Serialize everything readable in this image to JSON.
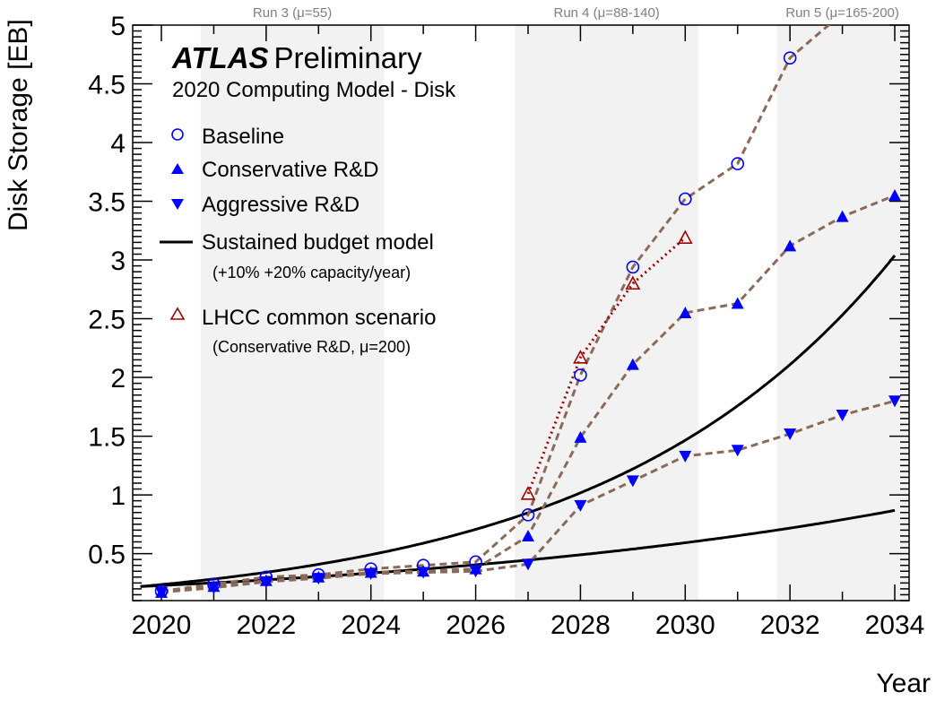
{
  "chart_data": {
    "type": "line",
    "title": "ATLAS Preliminary",
    "title_bold": "ATLAS",
    "title_rest": "Preliminary",
    "subtitle": "2020 Computing Model - Disk",
    "xlabel": "Year",
    "ylabel": "Disk Storage [EB]",
    "xlim": [
      2019.5,
      2034.5
    ],
    "ylim": [
      0.1,
      5
    ],
    "xticks": [
      "2020",
      "2022",
      "2024",
      "2026",
      "2028",
      "2030",
      "2032",
      "2034"
    ],
    "yticks": [
      "0.5",
      "1",
      "1.5",
      "2",
      "2.5",
      "3",
      "3.5",
      "4",
      "4.5",
      "5"
    ],
    "grid": false,
    "legend_position": "top-left",
    "shaded_bands": [
      {
        "label": "Run 3 (μ=55)",
        "x_start": 2020.75,
        "x_end": 2024.25
      },
      {
        "label": "Run 4 (μ=88-140)",
        "x_start": 2026.75,
        "x_end": 2030.25
      },
      {
        "label": "Run 5 (μ=165-200)",
        "x_start": 2031.75,
        "x_end": 2034.25
      }
    ],
    "series": [
      {
        "name": "Baseline",
        "marker": "open-circle",
        "color": "#0000ff",
        "line_color": "#8b6a5a",
        "x": [
          2020,
          2021,
          2022,
          2023,
          2024,
          2025,
          2026,
          2027,
          2028,
          2029,
          2030,
          2031,
          2032,
          2033
        ],
        "y": [
          0.18,
          0.24,
          0.3,
          0.32,
          0.37,
          0.4,
          0.43,
          0.83,
          2.02,
          2.94,
          3.52,
          3.82,
          4.72,
          5.1
        ]
      },
      {
        "name": "Conservative R&D",
        "marker": "triangle-up",
        "color": "#0000ff",
        "line_color": "#8b6a5a",
        "x": [
          2020,
          2021,
          2022,
          2023,
          2024,
          2025,
          2026,
          2027,
          2028,
          2029,
          2030,
          2031,
          2032,
          2033,
          2034
        ],
        "y": [
          0.17,
          0.22,
          0.27,
          0.3,
          0.34,
          0.35,
          0.37,
          0.65,
          1.49,
          2.11,
          2.55,
          2.63,
          3.12,
          3.37,
          3.55
        ]
      },
      {
        "name": "Aggressive R&D",
        "marker": "triangle-down",
        "color": "#0000ff",
        "line_color": "#8b6a5a",
        "x": [
          2020,
          2021,
          2022,
          2023,
          2024,
          2025,
          2026,
          2027,
          2028,
          2029,
          2030,
          2031,
          2032,
          2033,
          2034
        ],
        "y": [
          0.17,
          0.21,
          0.26,
          0.29,
          0.33,
          0.34,
          0.35,
          0.41,
          0.91,
          1.12,
          1.33,
          1.38,
          1.52,
          1.68,
          1.8
        ]
      },
      {
        "name": "LHCC common scenario",
        "sublabel": "(Conservative R&D, μ=200)",
        "marker": "open-triangle-up",
        "color": "#a00000",
        "line_color": "#a00000",
        "line_style": "dotted",
        "x": [
          2027,
          2028,
          2029,
          2030
        ],
        "y": [
          1.01,
          2.17,
          2.8,
          3.19
        ]
      },
      {
        "name": "Sustained budget model",
        "sublabel": "(+10% +20% capacity/year)",
        "marker": "none",
        "color": "#000000",
        "line_style": "solid",
        "curves": [
          {
            "label": "+20%",
            "x_start": 2019.6,
            "x_end": 2034,
            "y_start": 0.22,
            "growth": 1.2
          },
          {
            "label": "+10%",
            "x_start": 2019.6,
            "x_end": 2034,
            "y_start": 0.22,
            "growth": 1.1
          }
        ]
      }
    ]
  }
}
